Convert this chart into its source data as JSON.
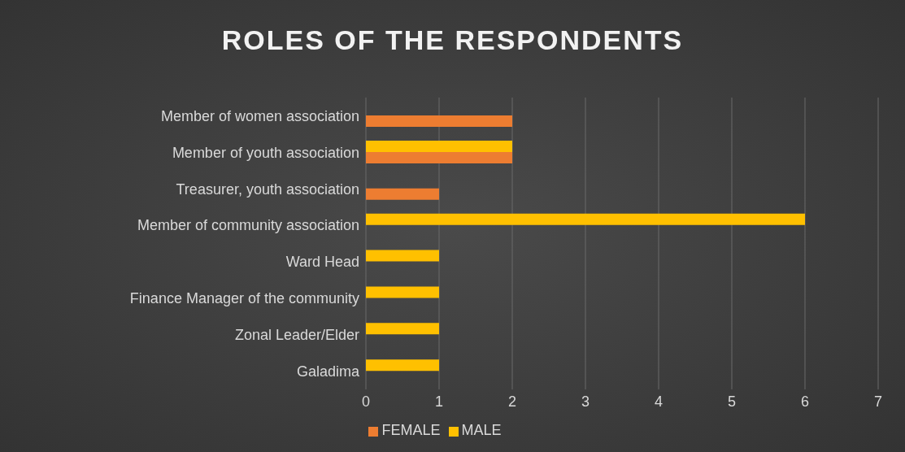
{
  "chart_data": {
    "type": "bar",
    "orientation": "horizontal",
    "title": "ROLES OF THE RESPONDENTS",
    "categories": [
      "Member of women association",
      "Member of youth association",
      "Treasurer, youth association",
      "Member of community association",
      "Ward Head",
      "Finance Manager of the community",
      "Zonal Leader/Elder",
      "Galadima"
    ],
    "series": [
      {
        "name": "MALE",
        "color": "#ffc000",
        "values": [
          null,
          2,
          null,
          6,
          1,
          1,
          1,
          1
        ]
      },
      {
        "name": "FEMALE",
        "color": "#ed7d31",
        "values": [
          2,
          2,
          1,
          null,
          null,
          null,
          null,
          null
        ]
      }
    ],
    "xlim": [
      0,
      7
    ],
    "xticks": [
      0,
      1,
      2,
      3,
      4,
      5,
      6,
      7
    ],
    "grid": "x",
    "legend": "bottom"
  }
}
